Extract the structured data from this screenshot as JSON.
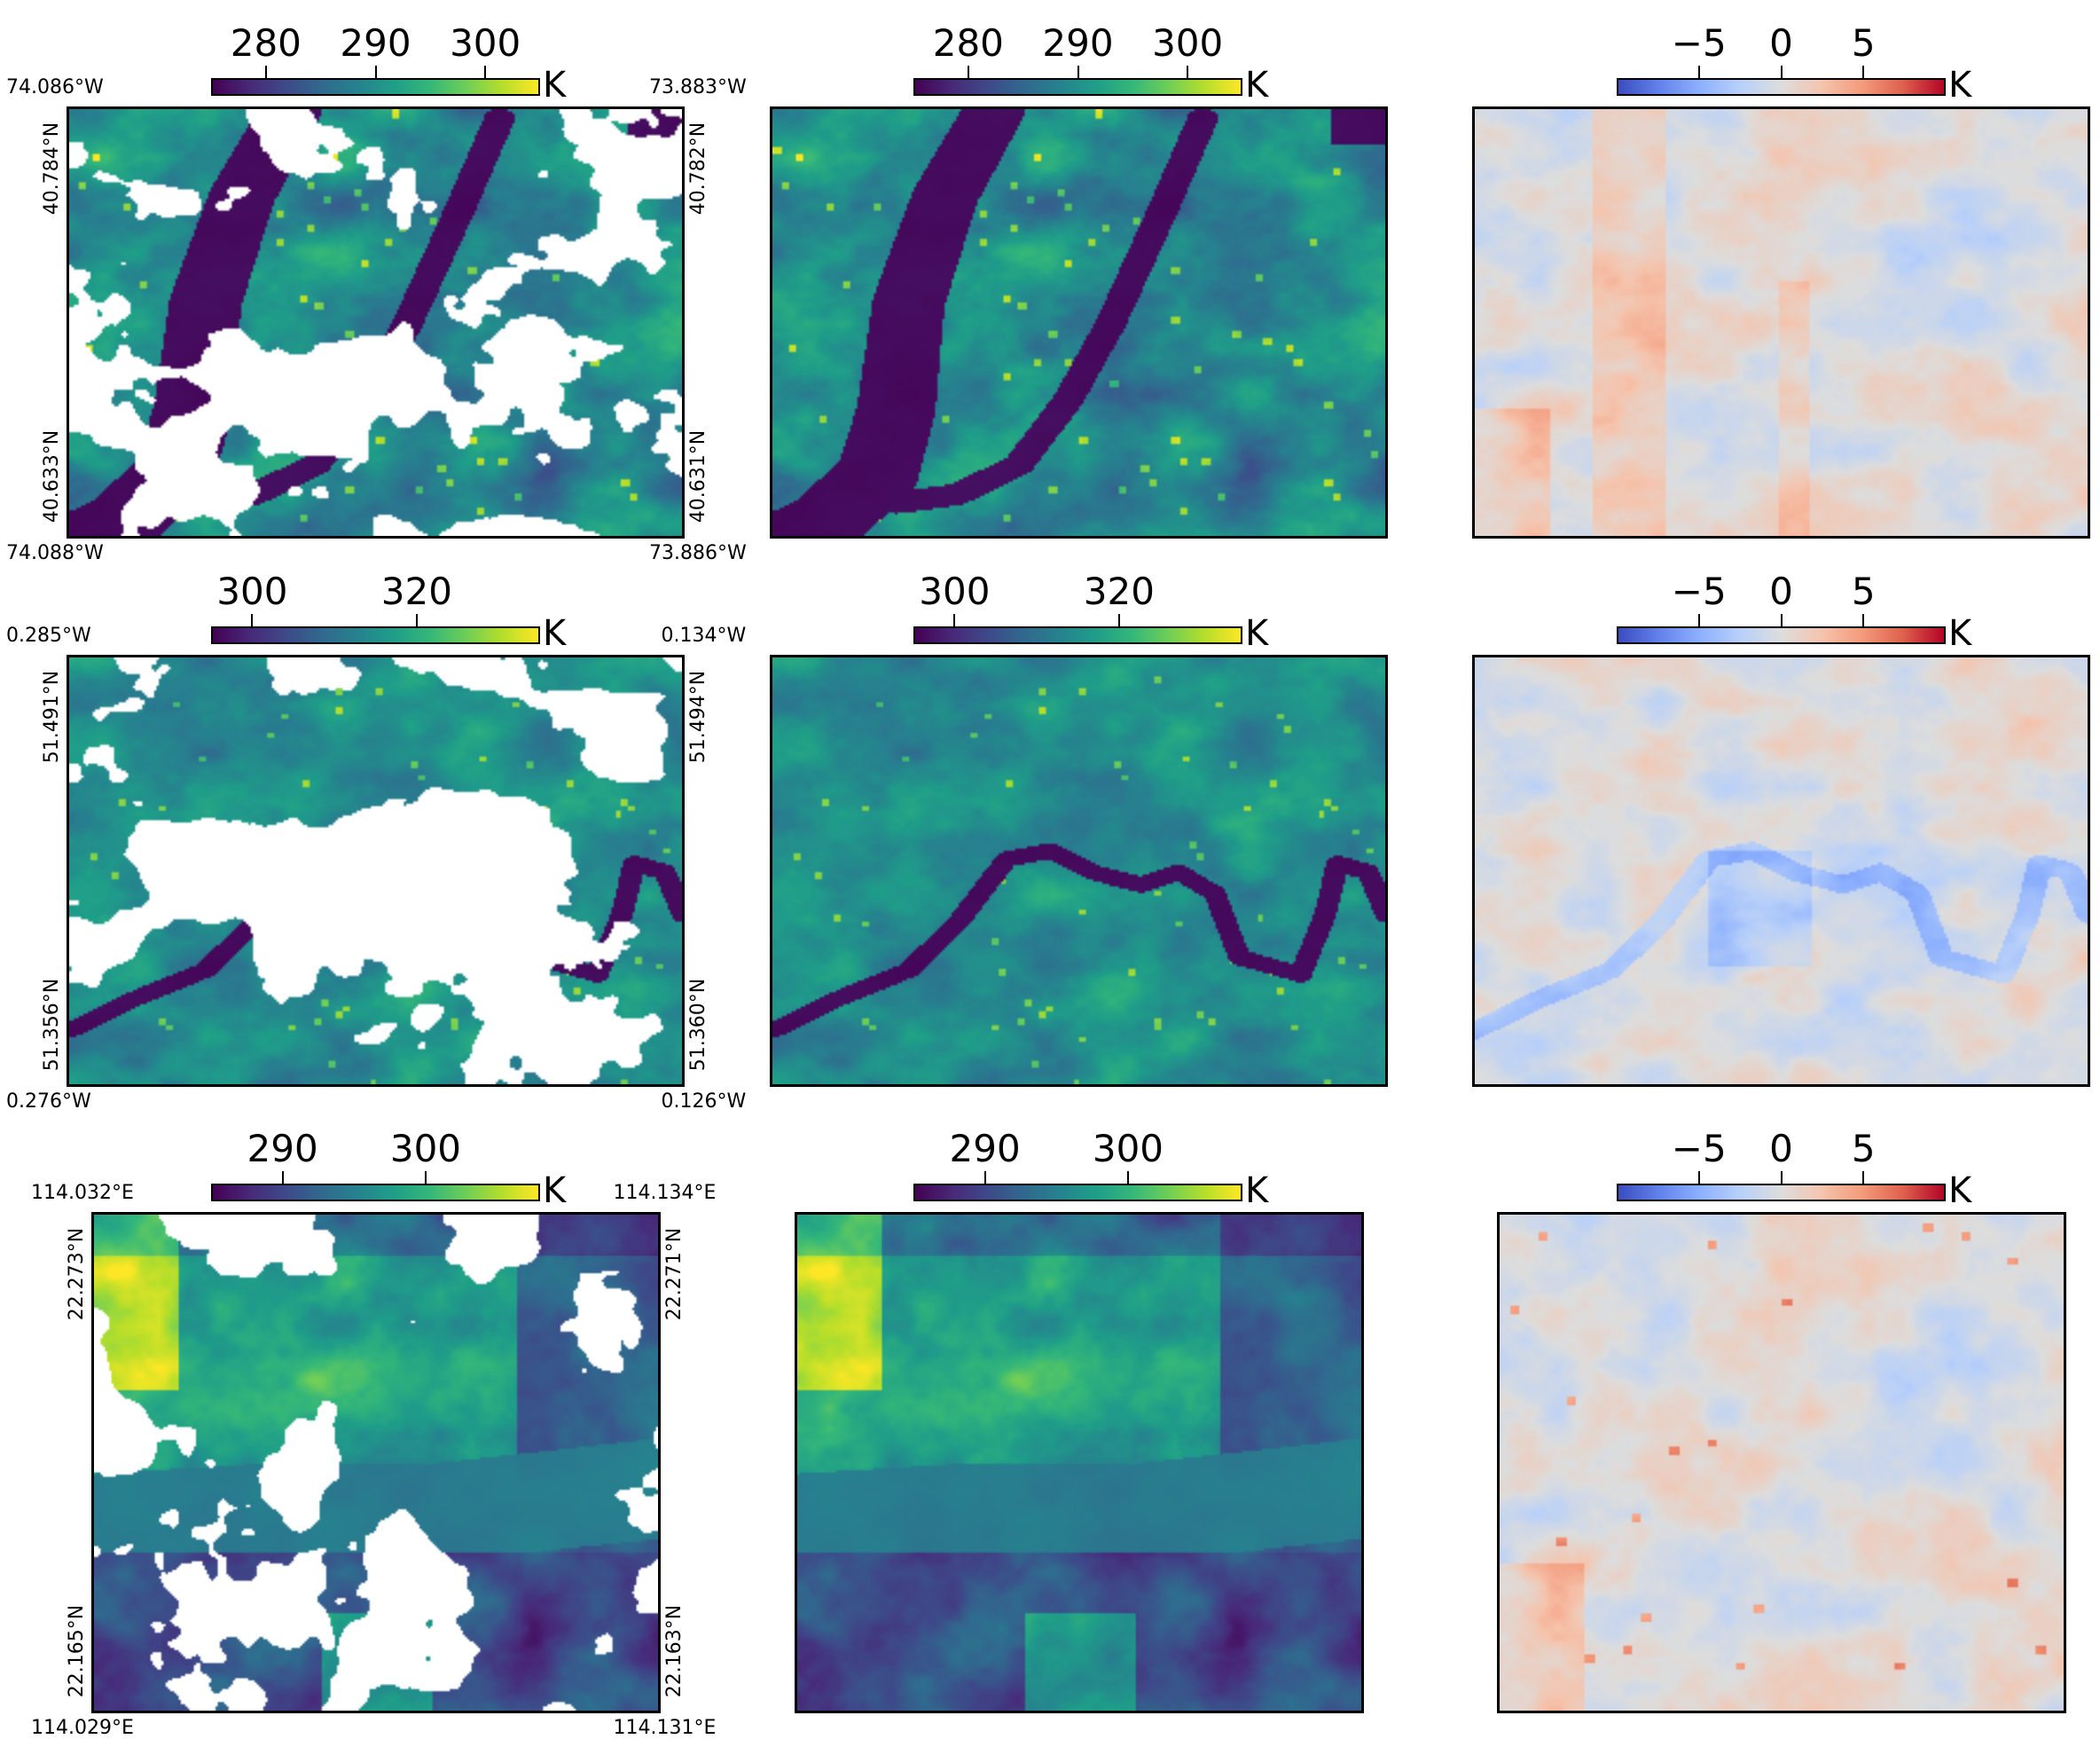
{
  "chart_data": [
    {
      "type": "heatmap",
      "region": "ny",
      "variant": "masked",
      "colormap": "viridis",
      "colorbar": {
        "ticks": [
          "280",
          "290",
          "300"
        ],
        "tick_values": [
          280,
          290,
          300
        ],
        "range": [
          275,
          305
        ],
        "unit": "K"
      },
      "coords": {
        "top_left": "74.086°W",
        "top_right": "73.883°W",
        "bottom_left": "74.088°W",
        "bottom_right": "73.886°W",
        "left_top": "40.784°N",
        "left_bottom": "40.633°N",
        "right_top": "40.782°N",
        "right_bottom": "40.631°N"
      }
    },
    {
      "type": "heatmap",
      "region": "ny",
      "variant": "full",
      "colormap": "viridis",
      "colorbar": {
        "ticks": [
          "280",
          "290",
          "300"
        ],
        "tick_values": [
          280,
          290,
          300
        ],
        "range": [
          275,
          305
        ],
        "unit": "K"
      }
    },
    {
      "type": "heatmap",
      "region": "ny",
      "variant": "diff",
      "colormap": "coolwarm",
      "colorbar": {
        "ticks": [
          "−5",
          "0",
          "5"
        ],
        "tick_values": [
          -5,
          0,
          5
        ],
        "range": [
          -10,
          10
        ],
        "unit": "K"
      }
    },
    {
      "type": "heatmap",
      "region": "london",
      "variant": "masked",
      "colormap": "viridis",
      "colorbar": {
        "ticks": [
          "300",
          "320"
        ],
        "tick_values": [
          300,
          320
        ],
        "range": [
          295,
          335
        ],
        "unit": "K"
      },
      "coords": {
        "top_left": "0.285°W",
        "top_right": "0.134°W",
        "bottom_left": "0.276°W",
        "bottom_right": "0.126°W",
        "left_top": "51.491°N",
        "left_bottom": "51.356°N",
        "right_top": "51.494°N",
        "right_bottom": "51.360°N"
      }
    },
    {
      "type": "heatmap",
      "region": "london",
      "variant": "full",
      "colormap": "viridis",
      "colorbar": {
        "ticks": [
          "300",
          "320"
        ],
        "tick_values": [
          300,
          320
        ],
        "range": [
          295,
          335
        ],
        "unit": "K"
      }
    },
    {
      "type": "heatmap",
      "region": "london",
      "variant": "diff",
      "colormap": "coolwarm",
      "colorbar": {
        "ticks": [
          "−5",
          "0",
          "5"
        ],
        "tick_values": [
          -5,
          0,
          5
        ],
        "range": [
          -10,
          10
        ],
        "unit": "K"
      }
    },
    {
      "type": "heatmap",
      "region": "hk",
      "variant": "masked",
      "colormap": "viridis",
      "colorbar": {
        "ticks": [
          "290",
          "300"
        ],
        "tick_values": [
          290,
          300
        ],
        "range": [
          285,
          308
        ],
        "unit": "K"
      },
      "coords": {
        "top_left": "114.032°E",
        "top_right": "114.134°E",
        "bottom_left": "114.029°E",
        "bottom_right": "114.131°E",
        "left_top": "22.273°N",
        "left_bottom": "22.165°N",
        "right_top": "22.271°N",
        "right_bottom": "22.163°N"
      }
    },
    {
      "type": "heatmap",
      "region": "hk",
      "variant": "full",
      "colormap": "viridis",
      "colorbar": {
        "ticks": [
          "290",
          "300"
        ],
        "tick_values": [
          290,
          300
        ],
        "range": [
          285,
          308
        ],
        "unit": "K"
      }
    },
    {
      "type": "heatmap",
      "region": "hk",
      "variant": "diff",
      "colormap": "coolwarm",
      "colorbar": {
        "ticks": [
          "−5",
          "0",
          "5"
        ],
        "tick_values": [
          -5,
          0,
          5
        ],
        "range": [
          -10,
          10
        ],
        "unit": "K"
      }
    }
  ]
}
